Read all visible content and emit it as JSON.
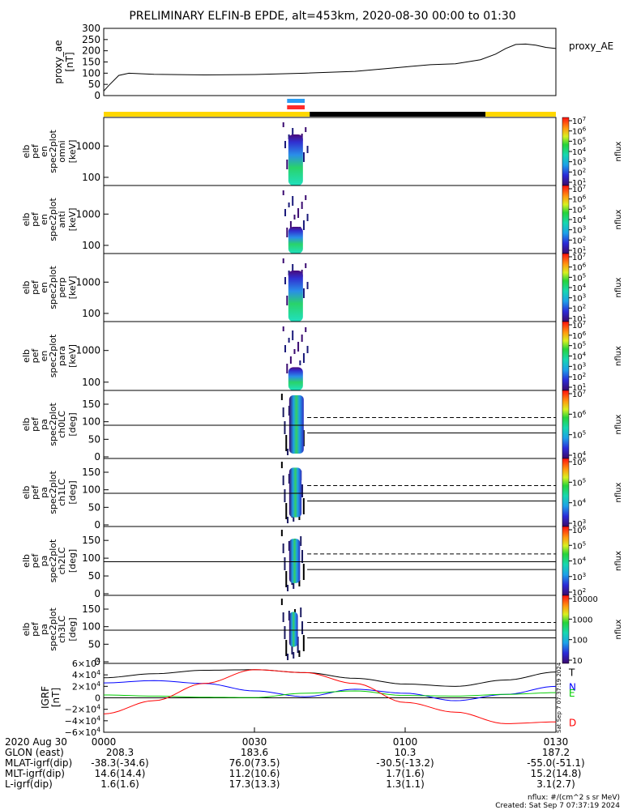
{
  "title": "PRELIMINARY ELFIN-B EPDE, alt=453km, 2020-08-30 00:00 to 01:30",
  "chart_data": [
    {
      "type": "line",
      "panel": "proxy_ae",
      "ylabel": "proxy_ae [nT]",
      "legend": "proxy_AE",
      "ylim": [
        0,
        300
      ],
      "yticks": [
        "300",
        "250",
        "200",
        "150",
        "100",
        "50",
        "0"
      ],
      "x_minutes": [
        0,
        1,
        3,
        5,
        10,
        20,
        30,
        40,
        50,
        55,
        60,
        65,
        70,
        75,
        78,
        80,
        82,
        84,
        86,
        88,
        90
      ],
      "values": [
        20,
        45,
        90,
        100,
        95,
        92,
        94,
        100,
        108,
        118,
        128,
        138,
        142,
        160,
        185,
        210,
        228,
        230,
        225,
        215,
        210
      ]
    },
    {
      "type": "heatmap",
      "panel": "en_spec omni",
      "ylabel": [
        "elb",
        "pef",
        "en",
        "spec2plot",
        "omni",
        "[keV]"
      ],
      "yticks": [
        "1000",
        "100"
      ],
      "colorbar": {
        "label": "nflux",
        "ticks": [
          "10^7",
          "10^6",
          "10^5",
          "10^4",
          "10^3",
          "10^2",
          "10^1"
        ]
      }
    },
    {
      "type": "heatmap",
      "panel": "en_spec anti",
      "ylabel": [
        "elb",
        "pef",
        "en",
        "spec2plot",
        "anti",
        "[keV]"
      ],
      "yticks": [
        "1000",
        "100"
      ],
      "colorbar": {
        "label": "nflux",
        "ticks": [
          "10^7",
          "10^6",
          "10^5",
          "10^4",
          "10^3",
          "10^2",
          "10^1"
        ]
      }
    },
    {
      "type": "heatmap",
      "panel": "en_spec perp",
      "ylabel": [
        "elb",
        "pef",
        "en",
        "spec2plot",
        "perp",
        "[keV]"
      ],
      "yticks": [
        "1000",
        "100"
      ],
      "colorbar": {
        "label": "nflux",
        "ticks": [
          "10^7",
          "10^6",
          "10^5",
          "10^4",
          "10^3",
          "10^2",
          "10^1"
        ]
      }
    },
    {
      "type": "heatmap",
      "panel": "en_spec para",
      "ylabel": [
        "elb",
        "pef",
        "en",
        "spec2plot",
        "para",
        "[keV]"
      ],
      "yticks": [
        "1000",
        "100"
      ],
      "colorbar": {
        "label": "nflux",
        "ticks": [
          "10^7",
          "10^6",
          "10^5",
          "10^4",
          "10^3",
          "10^2",
          "10^1"
        ]
      }
    },
    {
      "type": "heatmap",
      "panel": "pa_spec ch0LC",
      "ylabel": [
        "elb",
        "pef",
        "pa",
        "spec2plot",
        "ch0LC",
        "[deg]"
      ],
      "yticks": [
        "150",
        "100",
        "50",
        "0"
      ],
      "colorbar": {
        "label": "nflux",
        "ticks": [
          "10^7",
          "10^6",
          "10^5",
          "10^4"
        ]
      }
    },
    {
      "type": "heatmap",
      "panel": "pa_spec ch1LC",
      "ylabel": [
        "elb",
        "pef",
        "pa",
        "spec2plot",
        "ch1LC",
        "[deg]"
      ],
      "yticks": [
        "150",
        "100",
        "50",
        "0"
      ],
      "colorbar": {
        "label": "nflux",
        "ticks": [
          "10^6",
          "10^5",
          "10^4",
          "10^3"
        ]
      }
    },
    {
      "type": "heatmap",
      "panel": "pa_spec ch2LC",
      "ylabel": [
        "elb",
        "pef",
        "pa",
        "spec2plot",
        "ch2LC",
        "[deg]"
      ],
      "yticks": [
        "150",
        "100",
        "50",
        "0"
      ],
      "colorbar": {
        "label": "nflux",
        "ticks": [
          "10^6",
          "10^5",
          "10^4",
          "10^3",
          "10^2"
        ]
      }
    },
    {
      "type": "heatmap",
      "panel": "pa_spec ch3LC",
      "ylabel": [
        "elb",
        "pef",
        "pa",
        "spec2plot",
        "ch3LC",
        "[deg]"
      ],
      "yticks": [
        "150",
        "100",
        "50",
        "0"
      ],
      "colorbar": {
        "label": "nflux",
        "ticks": [
          "10000",
          "1000",
          "100",
          "10"
        ]
      }
    },
    {
      "type": "line",
      "panel": "IGRF",
      "ylabel": "IGRF [nT]",
      "ylim": [
        -60000,
        60000
      ],
      "yticks": [
        "6×10^4",
        "4×10^4",
        "2×10^4",
        "0",
        "−2×10^4",
        "−4×10^4",
        "−6×10^4"
      ],
      "x_minutes": [
        0,
        10,
        20,
        30,
        40,
        50,
        60,
        70,
        80,
        90
      ],
      "series": [
        {
          "name": "T",
          "color": "#000000",
          "values": [
            35000,
            42000,
            48000,
            49000,
            44000,
            34000,
            24000,
            20000,
            31000,
            45000
          ]
        },
        {
          "name": "N",
          "color": "#0000ff",
          "values": [
            26000,
            30000,
            25000,
            12000,
            2000,
            15000,
            8000,
            -5000,
            6000,
            20000
          ]
        },
        {
          "name": "E",
          "color": "#00cc00",
          "values": [
            5000,
            3000,
            1000,
            500,
            8000,
            12000,
            4000,
            3000,
            6000,
            9000
          ]
        },
        {
          "name": "D",
          "color": "#ff0000",
          "values": [
            -28000,
            -5000,
            25000,
            49000,
            44000,
            25000,
            -8000,
            -25000,
            -45000,
            -42000
          ]
        }
      ]
    }
  ],
  "state_bar": {
    "top_colors": [
      "#2a9df4",
      "#ff2a2a"
    ],
    "band_colors": {
      "day": "#ffd700",
      "night": "#000000"
    }
  },
  "x_axis": {
    "date": "2020 Aug 30",
    "ticks": [
      "0000",
      "0030",
      "0100",
      "0130"
    ],
    "rows": [
      {
        "label": "GLON (east)",
        "values": [
          "208.3",
          "183.6",
          "10.3",
          "187.2"
        ]
      },
      {
        "label": "MLAT-igrf(dip)",
        "values": [
          "-38.3(-34.6)",
          "76.0(73.5)",
          "-30.5(-13.2)",
          "-55.0(-51.1)"
        ]
      },
      {
        "label": "MLT-igrf(dip)",
        "values": [
          "14.6(14.4)",
          "11.2(10.6)",
          "1.7(1.6)",
          "15.2(14.8)"
        ]
      },
      {
        "label": "L-igrf(dip)",
        "values": [
          "1.6(1.6)",
          "17.3(13.3)",
          "1.3(1.1)",
          "3.1(2.7)"
        ]
      }
    ]
  },
  "footer": {
    "units": "nflux: #/(cm^2 s sr MeV)",
    "created": "Created: Sat Sep  7 07:37:19 2024",
    "side_stamp": "Sat Sep  7 07:37:19 2024"
  }
}
